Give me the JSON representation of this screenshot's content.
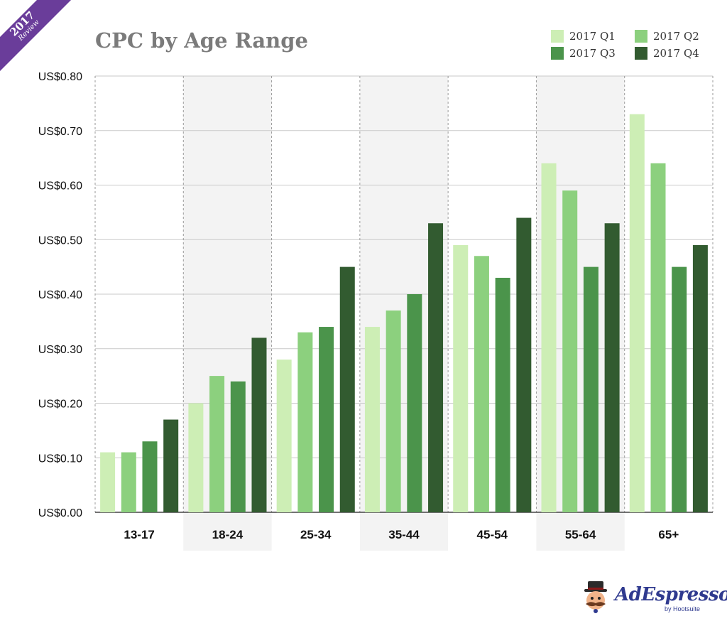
{
  "badge": {
    "year": "2017",
    "label": "Review"
  },
  "brand": {
    "name": "AdEspresso",
    "sub": "by Hootsuite"
  },
  "colors": {
    "q1": "#cdeeb5",
    "q2": "#8cd07e",
    "q3": "#4b944b",
    "q4": "#325b30",
    "band": "#f3f3f3",
    "grid": "#c9c9c9",
    "badge": "#6a3d9a",
    "brand": "#2f3a8f"
  },
  "chart_data": {
    "type": "bar",
    "title": "CPC by Age Range",
    "xlabel": "",
    "ylabel": "",
    "ylim": [
      0,
      0.8
    ],
    "yticks": [
      "US$0.00",
      "US$0.10",
      "US$0.20",
      "US$0.30",
      "US$0.40",
      "US$0.50",
      "US$0.60",
      "US$0.70",
      "US$0.80"
    ],
    "grid": true,
    "legend_position": "top-right",
    "categories": [
      "13-17",
      "18-24",
      "25-34",
      "35-44",
      "45-54",
      "55-64",
      "65+"
    ],
    "series": [
      {
        "name": "2017 Q1",
        "values": [
          0.11,
          0.2,
          0.28,
          0.34,
          0.49,
          0.64,
          0.73
        ]
      },
      {
        "name": "2017 Q2",
        "values": [
          0.11,
          0.25,
          0.33,
          0.37,
          0.47,
          0.59,
          0.64
        ]
      },
      {
        "name": "2017 Q3",
        "values": [
          0.13,
          0.24,
          0.34,
          0.4,
          0.43,
          0.45,
          0.45
        ]
      },
      {
        "name": "2017 Q4",
        "values": [
          0.17,
          0.32,
          0.45,
          0.53,
          0.54,
          0.53,
          0.49
        ]
      }
    ]
  }
}
